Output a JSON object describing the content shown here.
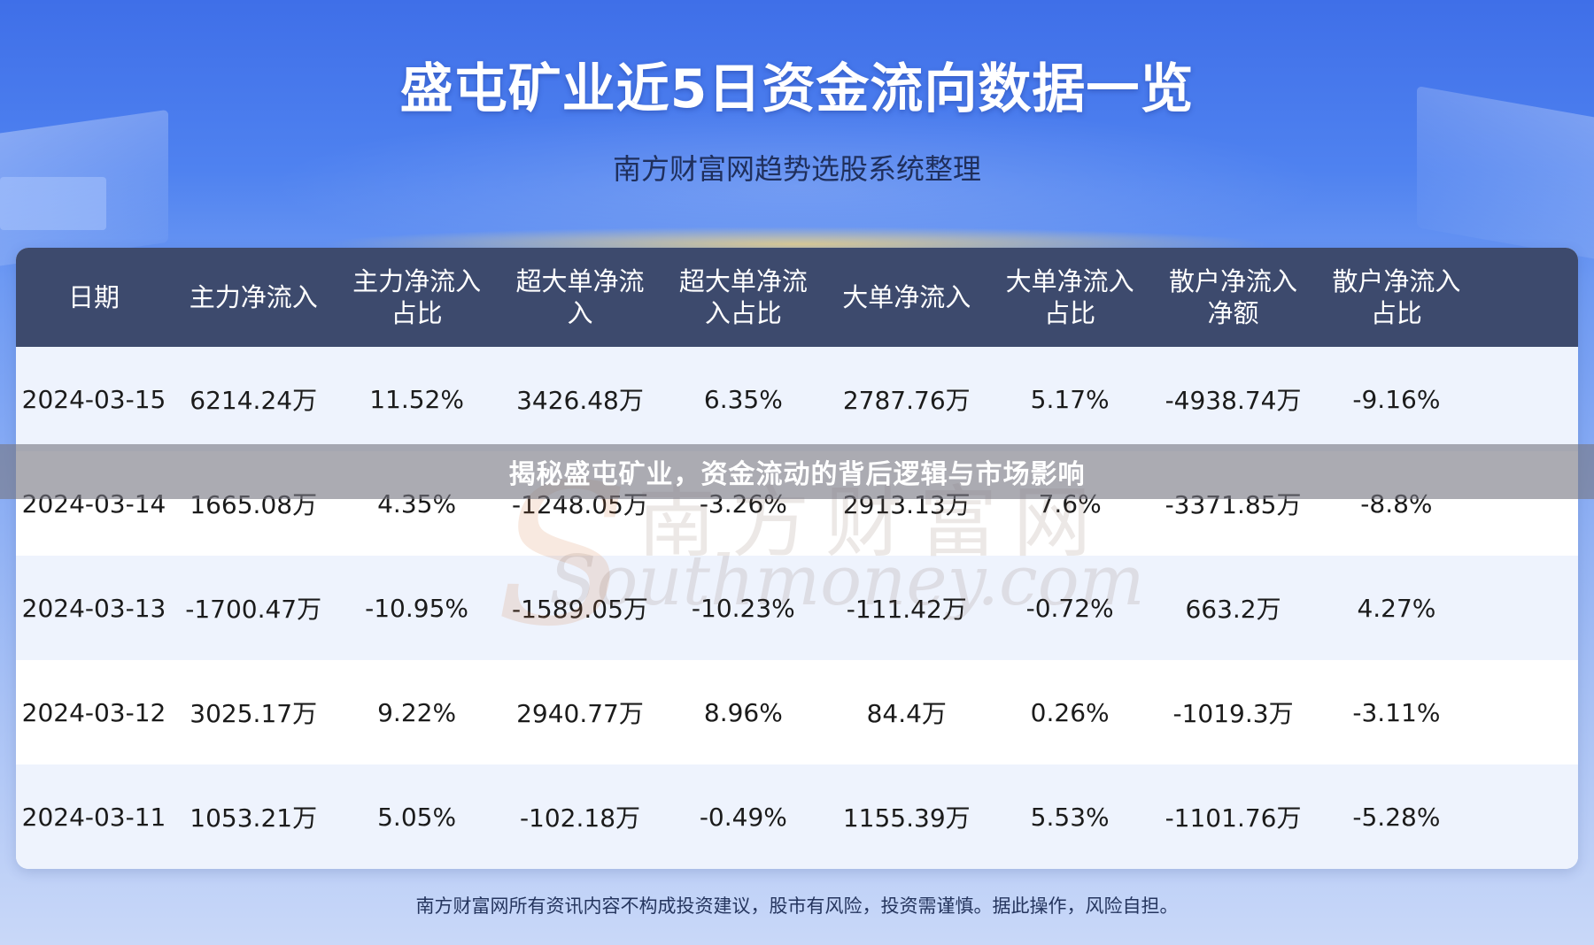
{
  "header": {
    "title": "盛屯矿业近5日资金流向数据一览",
    "subtitle": "南方财富网趋势选股系统整理"
  },
  "table": {
    "columns": [
      "日期",
      "主力净流入",
      "主力净流入\n占比",
      "超大单净流\n入",
      "超大单净流\n入占比",
      "大单净流入",
      "大单净流入\n占比",
      "散户净流入\n净额",
      "散户净流入\n占比"
    ],
    "rows": [
      [
        "2024-03-15",
        "6214.24万",
        "11.52%",
        "3426.48万",
        "6.35%",
        "2787.76万",
        "5.17%",
        "-4938.74万",
        "-9.16%"
      ],
      [
        "2024-03-14",
        "1665.08万",
        "4.35%",
        "-1248.05万",
        "-3.26%",
        "2913.13万",
        "7.6%",
        "-3371.85万",
        "-8.8%"
      ],
      [
        "2024-03-13",
        "-1700.47万",
        "-10.95%",
        "-1589.05万",
        "-10.23%",
        "-111.42万",
        "-0.72%",
        "663.2万",
        "4.27%"
      ],
      [
        "2024-03-12",
        "3025.17万",
        "9.22%",
        "2940.77万",
        "8.96%",
        "84.4万",
        "0.26%",
        "-1019.3万",
        "-3.11%"
      ],
      [
        "2024-03-11",
        "1053.21万",
        "5.05%",
        "-102.18万",
        "-0.49%",
        "1155.39万",
        "5.53%",
        "-1101.76万",
        "-5.28%"
      ]
    ]
  },
  "watermark": {
    "cn": "南方财富网",
    "en": "Southmoney.com"
  },
  "banner": {
    "text": "揭秘盛屯矿业，资金流动的背后逻辑与市场影响"
  },
  "footer": {
    "disclaimer": "南方财富网所有资讯内容不构成投资建议，股市有风险，投资需谨慎。据此操作，风险自担。"
  }
}
